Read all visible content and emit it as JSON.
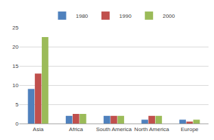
{
  "chart_data": {
    "type": "bar",
    "categories": [
      "Asia",
      "Africa",
      "South America",
      "North America",
      "Europe"
    ],
    "series": [
      {
        "name": "1980",
        "color": "#4f81bd",
        "values": [
          9,
          2,
          2,
          1,
          1
        ]
      },
      {
        "name": "1990",
        "color": "#c0504d",
        "values": [
          13,
          2.5,
          2,
          2,
          0.5
        ]
      },
      {
        "name": "2000",
        "color": "#9bbb59",
        "values": [
          22.5,
          2.5,
          2,
          2,
          1
        ]
      }
    ],
    "ylim": [
      0,
      25
    ],
    "yticks": [
      0,
      5,
      10,
      15,
      20,
      25
    ],
    "grid": true,
    "legend": "top"
  }
}
